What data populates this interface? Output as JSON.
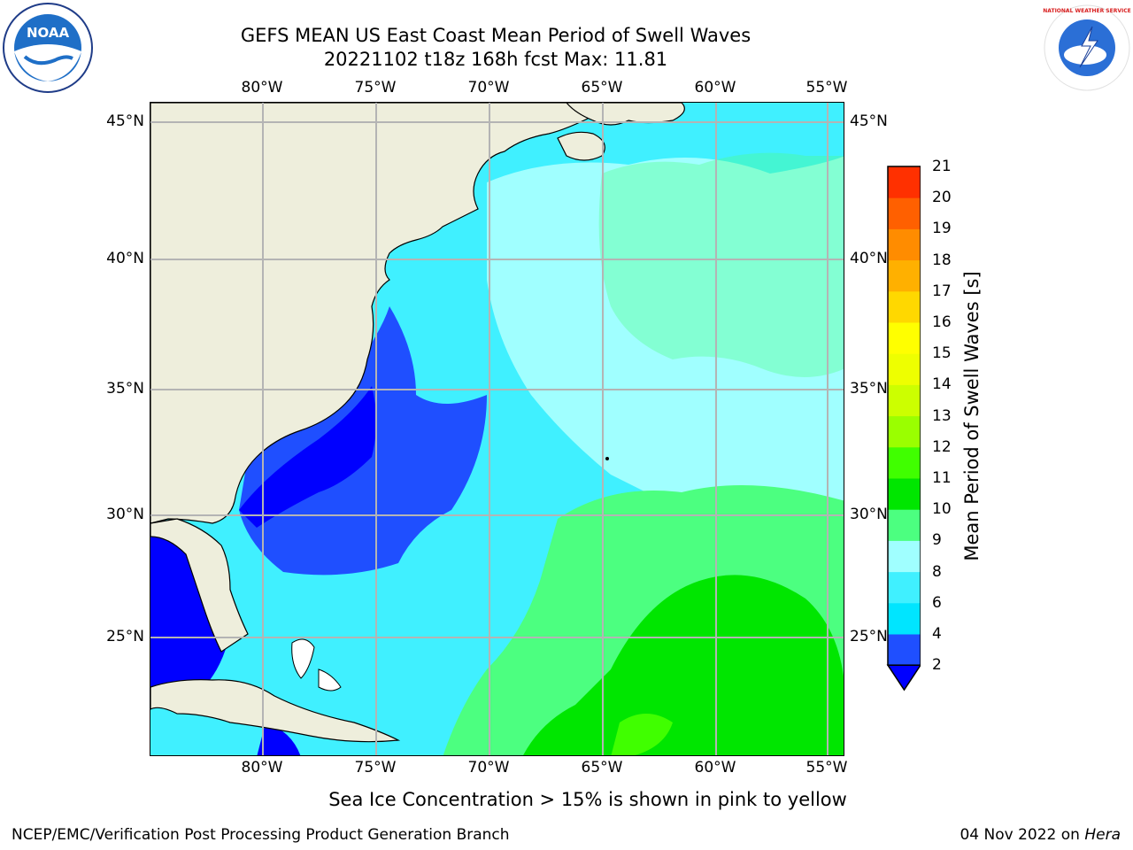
{
  "title_line1": "GEFS MEAN US East Coast Mean Period of Swell Waves",
  "title_line2": "20221102 t18z 168h fcst   Max: 11.81",
  "longitude_ticks": [
    "80°W",
    "75°W",
    "70°W",
    "65°W",
    "60°W",
    "55°W"
  ],
  "latitude_ticks": [
    "45°N",
    "40°N",
    "35°N",
    "30°N",
    "25°N"
  ],
  "colorbar": {
    "title": "Mean Period of Swell Waves [s]",
    "tick_labels": [
      "2",
      "4",
      "6",
      "8",
      "9",
      "10",
      "11",
      "12",
      "13",
      "14",
      "15",
      "16",
      "17",
      "18",
      "19",
      "20",
      "21"
    ],
    "colors": [
      "#1f4fff",
      "#00e5ff",
      "#40f0ff",
      "#a0ffff",
      "#4cff80",
      "#00e600",
      "#40ff00",
      "#9aff00",
      "#ccff00",
      "#eeff00",
      "#ffff00",
      "#ffd800",
      "#ffb000",
      "#ff8c00",
      "#ff6000",
      "#ff3000",
      "#ff0000"
    ],
    "under_color": "#0000ff"
  },
  "subtitle": "Sea Ice Concentration > 15% is shown in pink to yellow",
  "footer": {
    "left": "NCEP/EMC/Verification Post Processing Product Generation Branch",
    "date": "04 Nov 2022 on ",
    "host": "Hera"
  },
  "logos": {
    "left": "NOAA",
    "right": "NATIONAL WEATHER SERVICE"
  },
  "colors": {
    "land": "#eeeedc",
    "grid": "#b4b4b4"
  }
}
